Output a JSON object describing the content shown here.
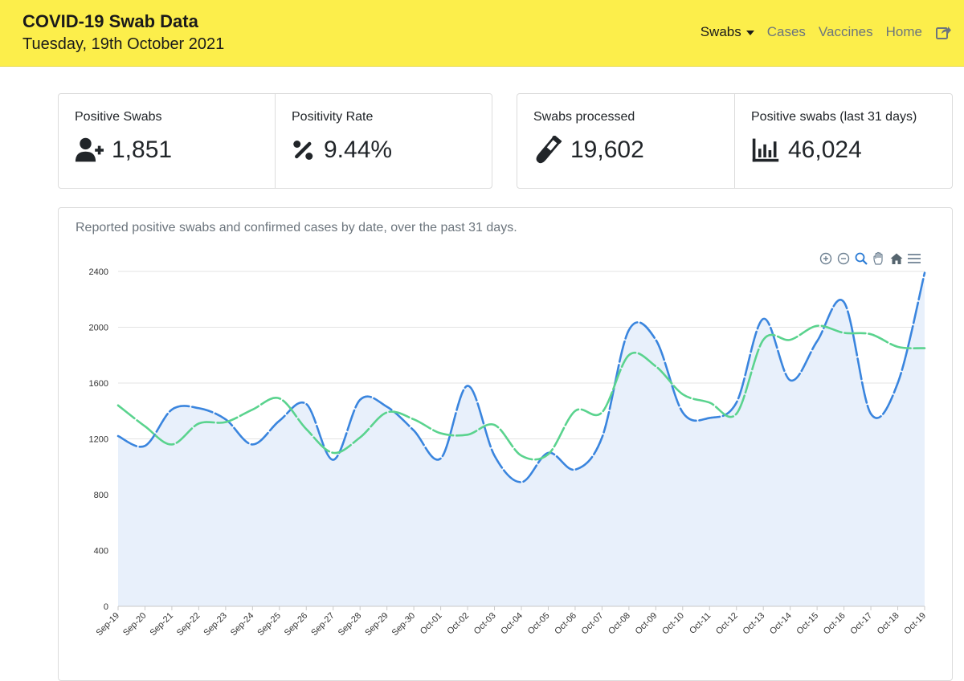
{
  "header": {
    "title": "COVID-19 Swab Data",
    "date": "Tuesday, 19th October 2021",
    "nav": {
      "swabs": "Swabs",
      "cases": "Cases",
      "vaccines": "Vaccines",
      "home": "Home"
    },
    "bg_color": "#fcee4b"
  },
  "stats_left": [
    {
      "label": "Positive Swabs",
      "value": "1,851",
      "icon": "user-plus-icon"
    },
    {
      "label": "Positivity Rate",
      "value": "9.44%",
      "icon": "percent-icon"
    }
  ],
  "stats_right": [
    {
      "label": "Swabs processed",
      "value": "19,602",
      "icon": "test-tube-icon"
    },
    {
      "label": "Positive swabs (last 31 days)",
      "value": "46,024",
      "icon": "bar-chart-icon"
    }
  ],
  "chart": {
    "caption": "Reported positive swabs and confirmed cases by date, over the past 31 days."
  },
  "chart_data": {
    "type": "line",
    "categories": [
      "Sep-19",
      "Sep-20",
      "Sep-21",
      "Sep-22",
      "Sep-23",
      "Sep-24",
      "Sep-25",
      "Sep-26",
      "Sep-27",
      "Sep-28",
      "Sep-29",
      "Sep-30",
      "Oct-01",
      "Oct-02",
      "Oct-03",
      "Oct-04",
      "Oct-05",
      "Oct-06",
      "Oct-07",
      "Oct-08",
      "Oct-09",
      "Oct-10",
      "Oct-11",
      "Oct-12",
      "Oct-13",
      "Oct-14",
      "Oct-15",
      "Oct-16",
      "Oct-17",
      "Oct-18",
      "Oct-19"
    ],
    "ylim": [
      0,
      2400
    ],
    "yticks": [
      0,
      400,
      800,
      1200,
      1600,
      2000,
      2400
    ],
    "grid": true,
    "series": [
      {
        "color": "#3a85de",
        "fill": "#e8f0fb",
        "values": [
          1220,
          1150,
          1410,
          1420,
          1340,
          1160,
          1330,
          1450,
          1050,
          1480,
          1430,
          1260,
          1060,
          1580,
          1080,
          890,
          1100,
          980,
          1210,
          1980,
          1910,
          1390,
          1350,
          1460,
          2060,
          1620,
          1900,
          2180,
          1380,
          1600,
          2390
        ]
      },
      {
        "color": "#5ad38e",
        "values": [
          1440,
          1290,
          1160,
          1310,
          1320,
          1410,
          1490,
          1270,
          1100,
          1210,
          1390,
          1340,
          1240,
          1230,
          1300,
          1080,
          1090,
          1400,
          1390,
          1800,
          1720,
          1520,
          1460,
          1380,
          1910,
          1910,
          2010,
          1960,
          1950,
          1860,
          1850
        ]
      }
    ]
  }
}
